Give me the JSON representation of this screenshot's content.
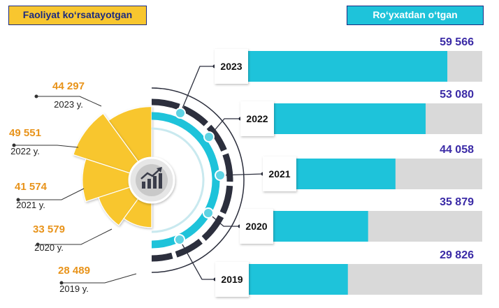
{
  "legend": {
    "active": "Faoliyat koʻrsatayotgan",
    "registered": "Roʻyxatdan oʻtgan"
  },
  "colors": {
    "active": "#f8c62f",
    "registered": "#1ec3da",
    "bar_track": "#d9d9d9",
    "active_value": "#e8931a",
    "registered_value": "#3a2aa6",
    "ring_dark": "#2c2f3d"
  },
  "center_icon": "growth-chart-icon",
  "chart_data": {
    "type": "bar",
    "orientation": "horizontal",
    "categories": [
      "2023",
      "2022",
      "2021",
      "2020",
      "2019"
    ],
    "xlim": [
      0,
      70000
    ],
    "series": [
      {
        "name": "Roʻyxatdan oʻtgan",
        "values": [
          59566,
          53080,
          44058,
          35879,
          29826
        ],
        "labels": [
          "59 566",
          "53 080",
          "44 058",
          "35 879",
          "29 826"
        ]
      }
    ]
  },
  "active_chart": {
    "type": "radial-bar",
    "categories": [
      "2023 y.",
      "2022 y.",
      "2021 y.",
      "2020 y.",
      "2019 y."
    ],
    "series": [
      {
        "name": "Faoliyat koʻrsatayotgan",
        "values": [
          44297,
          49551,
          41574,
          33579,
          28489
        ],
        "labels": [
          "44 297",
          "49 551",
          "41 574",
          "33 579",
          "28 489"
        ]
      }
    ]
  }
}
